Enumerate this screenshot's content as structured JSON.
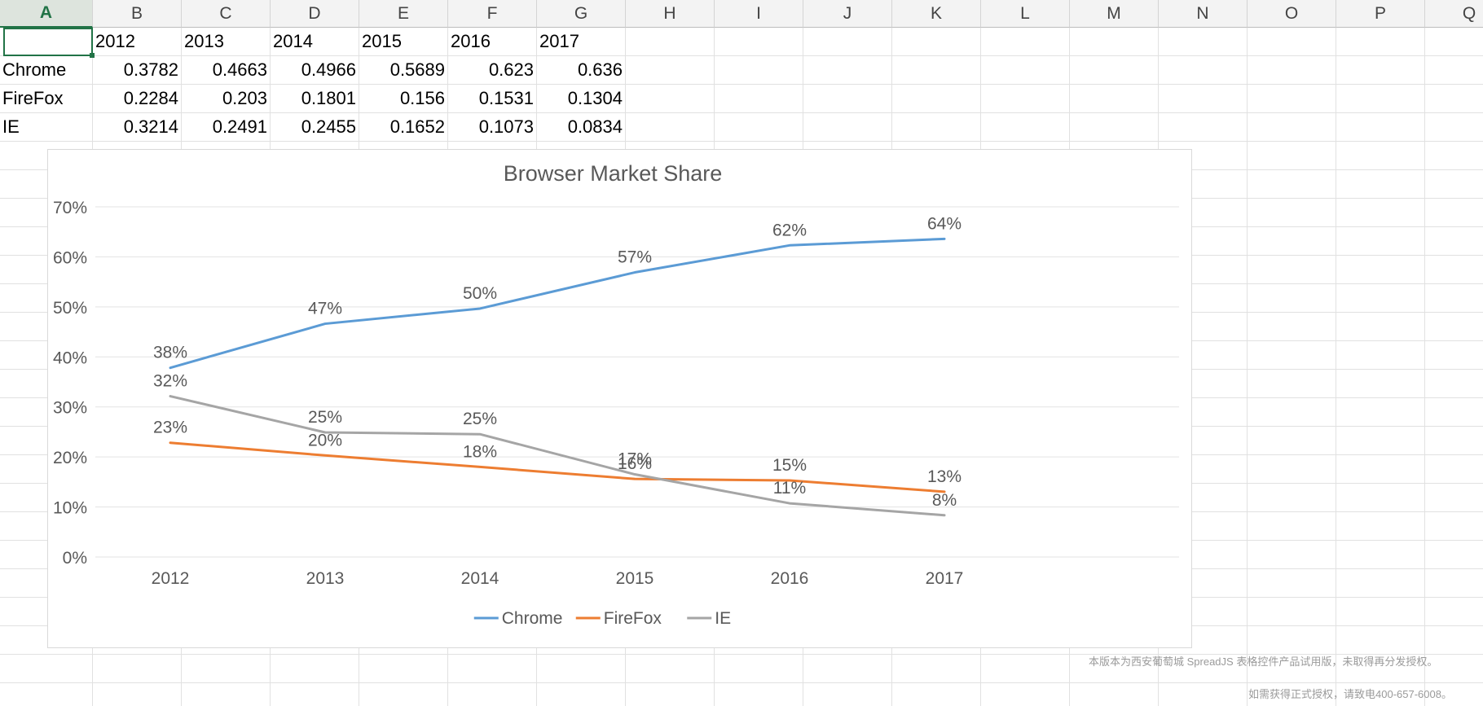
{
  "columns": [
    "A",
    "B",
    "C",
    "D",
    "E",
    "F",
    "G",
    "H",
    "I",
    "J",
    "K",
    "L",
    "M",
    "N",
    "O",
    "P",
    "Q"
  ],
  "active_column": "A",
  "sheet": {
    "header_row": [
      "",
      "2012",
      "2013",
      "2014",
      "2015",
      "2016",
      "2017"
    ],
    "rows": [
      {
        "label": "Chrome",
        "values": [
          "0.3782",
          "0.4663",
          "0.4966",
          "0.5689",
          "0.623",
          "0.636"
        ]
      },
      {
        "label": "FireFox",
        "values": [
          "0.2284",
          "0.203",
          "0.1801",
          "0.156",
          "0.1531",
          "0.1304"
        ]
      },
      {
        "label": "IE",
        "values": [
          "0.3214",
          "0.2491",
          "0.2455",
          "0.1652",
          "0.1073",
          "0.0834"
        ]
      }
    ]
  },
  "chart_data": {
    "type": "line",
    "title": "Browser Market Share",
    "categories": [
      "2012",
      "2013",
      "2014",
      "2015",
      "2016",
      "2017"
    ],
    "series": [
      {
        "name": "Chrome",
        "color": "#5b9bd5",
        "values": [
          0.3782,
          0.4663,
          0.4966,
          0.5689,
          0.623,
          0.636
        ],
        "labels": [
          "38%",
          "47%",
          "50%",
          "57%",
          "62%",
          "64%"
        ]
      },
      {
        "name": "FireFox",
        "color": "#ed7d31",
        "values": [
          0.2284,
          0.203,
          0.1801,
          0.156,
          0.1531,
          0.1304
        ],
        "labels": [
          "23%",
          "20%",
          "18%",
          "16%",
          "15%",
          "13%"
        ]
      },
      {
        "name": "IE",
        "color": "#a5a5a5",
        "values": [
          0.3214,
          0.2491,
          0.2455,
          0.1652,
          0.1073,
          0.0834
        ],
        "labels": [
          "32%",
          "25%",
          "25%",
          "17%",
          "11%",
          "8%"
        ]
      }
    ],
    "ylim": [
      0,
      0.7
    ],
    "yticks": [
      0,
      0.1,
      0.2,
      0.3,
      0.4,
      0.5,
      0.6,
      0.7
    ],
    "ytick_labels": [
      "0%",
      "10%",
      "20%",
      "30%",
      "40%",
      "50%",
      "60%",
      "70%"
    ],
    "grid": true,
    "legend": "bottom"
  },
  "watermark": {
    "line1": "本版本为西安葡萄城 SpreadJS 表格控件产品试用版，未取得再分发授权。",
    "line2": "如需获得正式授权，请致电400-657-6008。"
  }
}
